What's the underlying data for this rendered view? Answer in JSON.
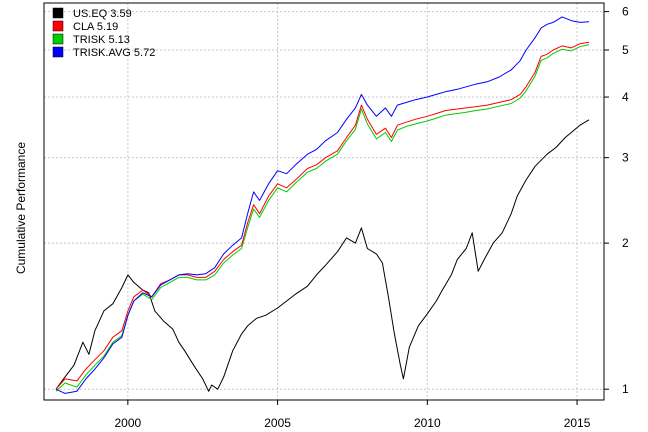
{
  "chart_data": {
    "type": "line",
    "title": "",
    "xlabel": "",
    "ylabel": "Cumulative Performance",
    "y_scale": "log",
    "xlim": [
      1997.2,
      2015.9
    ],
    "ylim": [
      0.95,
      6.25
    ],
    "x_ticks": [
      2000,
      2005,
      2010,
      2015
    ],
    "x_tick_labels": [
      "2000",
      "2005",
      "2010",
      "2015"
    ],
    "y_ticks": [
      1,
      2,
      3,
      4,
      5,
      6
    ],
    "y_tick_labels": [
      "1",
      "2",
      "3",
      "4",
      "5",
      "6"
    ],
    "grid": true,
    "legend_position": "top-left",
    "legend": [
      {
        "label": "US.EQ 3.59",
        "color": "#000000"
      },
      {
        "label": "CLA 5.19",
        "color": "#ff0000"
      },
      {
        "label": "TRISK 5.13",
        "color": "#00cc00"
      },
      {
        "label": "TRISK.AVG 5.72",
        "color": "#0000ff"
      }
    ],
    "series": [
      {
        "name": "US.EQ",
        "color": "#000000",
        "x": [
          1997.6,
          1997.9,
          1998.2,
          1998.5,
          1998.7,
          1998.9,
          1999.2,
          1999.5,
          1999.8,
          2000.0,
          2000.2,
          2000.5,
          2000.7,
          2000.9,
          2001.2,
          2001.5,
          2001.7,
          2001.9,
          2002.2,
          2002.5,
          2002.7,
          2002.8,
          2003.0,
          2003.2,
          2003.5,
          2003.8,
          2004.0,
          2004.3,
          2004.6,
          2005.0,
          2005.3,
          2005.6,
          2006.0,
          2006.3,
          2006.6,
          2007.0,
          2007.3,
          2007.6,
          2007.8,
          2008.0,
          2008.3,
          2008.5,
          2008.7,
          2008.9,
          2009.1,
          2009.2,
          2009.4,
          2009.7,
          2010.0,
          2010.3,
          2010.5,
          2010.8,
          2011.0,
          2011.3,
          2011.5,
          2011.7,
          2011.9,
          2012.2,
          2012.5,
          2012.8,
          2013.0,
          2013.3,
          2013.6,
          2014.0,
          2014.3,
          2014.6,
          2014.9,
          2015.1,
          2015.4
        ],
        "values": [
          1.0,
          1.06,
          1.12,
          1.25,
          1.18,
          1.32,
          1.45,
          1.5,
          1.62,
          1.72,
          1.66,
          1.6,
          1.58,
          1.45,
          1.38,
          1.33,
          1.25,
          1.2,
          1.12,
          1.05,
          0.99,
          1.02,
          1.0,
          1.06,
          1.2,
          1.3,
          1.35,
          1.4,
          1.42,
          1.47,
          1.52,
          1.57,
          1.63,
          1.72,
          1.8,
          1.92,
          2.05,
          2.0,
          2.15,
          1.95,
          1.9,
          1.82,
          1.55,
          1.3,
          1.12,
          1.05,
          1.22,
          1.35,
          1.43,
          1.52,
          1.6,
          1.72,
          1.85,
          1.95,
          2.1,
          1.75,
          1.85,
          2.0,
          2.1,
          2.3,
          2.5,
          2.7,
          2.88,
          3.05,
          3.15,
          3.3,
          3.42,
          3.5,
          3.59
        ]
      },
      {
        "name": "CLA",
        "color": "#ff0000",
        "x": [
          1997.6,
          1997.9,
          1998.3,
          1998.6,
          1998.9,
          1999.2,
          1999.5,
          1999.8,
          2000.0,
          2000.2,
          2000.5,
          2000.8,
          2001.1,
          2001.4,
          2001.7,
          2002.0,
          2002.3,
          2002.6,
          2002.9,
          2003.2,
          2003.5,
          2003.8,
          2004.0,
          2004.2,
          2004.4,
          2004.7,
          2005.0,
          2005.3,
          2005.6,
          2006.0,
          2006.3,
          2006.6,
          2007.0,
          2007.3,
          2007.6,
          2007.8,
          2008.0,
          2008.3,
          2008.6,
          2008.8,
          2009.0,
          2009.3,
          2009.6,
          2010.0,
          2010.3,
          2010.6,
          2011.0,
          2011.3,
          2011.6,
          2012.0,
          2012.4,
          2012.8,
          2013.1,
          2013.3,
          2013.6,
          2013.8,
          2014.0,
          2014.2,
          2014.5,
          2014.8,
          2015.1,
          2015.4
        ],
        "values": [
          1.0,
          1.05,
          1.04,
          1.1,
          1.15,
          1.2,
          1.28,
          1.32,
          1.45,
          1.55,
          1.6,
          1.55,
          1.65,
          1.68,
          1.72,
          1.72,
          1.7,
          1.7,
          1.75,
          1.85,
          1.92,
          1.98,
          2.2,
          2.4,
          2.3,
          2.5,
          2.65,
          2.6,
          2.7,
          2.85,
          2.9,
          3.0,
          3.1,
          3.3,
          3.5,
          3.85,
          3.6,
          3.35,
          3.45,
          3.3,
          3.5,
          3.55,
          3.6,
          3.65,
          3.7,
          3.75,
          3.78,
          3.8,
          3.82,
          3.85,
          3.9,
          3.95,
          4.05,
          4.2,
          4.5,
          4.85,
          4.9,
          5.0,
          5.1,
          5.05,
          5.15,
          5.19
        ]
      },
      {
        "name": "TRISK",
        "color": "#00cc00",
        "x": [
          1997.6,
          1997.9,
          1998.3,
          1998.6,
          1998.9,
          1999.2,
          1999.5,
          1999.8,
          2000.0,
          2000.2,
          2000.5,
          2000.8,
          2001.1,
          2001.4,
          2001.7,
          2002.0,
          2002.3,
          2002.6,
          2002.9,
          2003.2,
          2003.5,
          2003.8,
          2004.0,
          2004.2,
          2004.4,
          2004.7,
          2005.0,
          2005.3,
          2005.6,
          2006.0,
          2006.3,
          2006.6,
          2007.0,
          2007.3,
          2007.6,
          2007.8,
          2008.0,
          2008.3,
          2008.6,
          2008.8,
          2009.0,
          2009.3,
          2009.6,
          2010.0,
          2010.3,
          2010.6,
          2011.0,
          2011.3,
          2011.6,
          2012.0,
          2012.4,
          2012.8,
          2013.1,
          2013.3,
          2013.6,
          2013.8,
          2014.0,
          2014.2,
          2014.5,
          2014.8,
          2015.1,
          2015.4
        ],
        "values": [
          0.99,
          1.03,
          1.01,
          1.07,
          1.12,
          1.17,
          1.25,
          1.29,
          1.42,
          1.52,
          1.57,
          1.53,
          1.62,
          1.66,
          1.7,
          1.7,
          1.68,
          1.68,
          1.72,
          1.82,
          1.89,
          1.95,
          2.15,
          2.35,
          2.26,
          2.45,
          2.6,
          2.55,
          2.66,
          2.8,
          2.85,
          2.95,
          3.05,
          3.25,
          3.43,
          3.78,
          3.52,
          3.28,
          3.38,
          3.24,
          3.42,
          3.48,
          3.52,
          3.57,
          3.62,
          3.67,
          3.7,
          3.72,
          3.75,
          3.78,
          3.83,
          3.88,
          3.98,
          4.12,
          4.42,
          4.76,
          4.82,
          4.92,
          5.02,
          4.98,
          5.08,
          5.13
        ]
      },
      {
        "name": "TRISK.AVG",
        "color": "#0000ff",
        "x": [
          1997.6,
          1997.9,
          1998.3,
          1998.6,
          1998.9,
          1999.2,
          1999.5,
          1999.8,
          2000.0,
          2000.2,
          2000.5,
          2000.8,
          2001.1,
          2001.4,
          2001.7,
          2002.0,
          2002.3,
          2002.6,
          2002.9,
          2003.2,
          2003.5,
          2003.8,
          2004.0,
          2004.2,
          2004.4,
          2004.7,
          2005.0,
          2005.3,
          2005.6,
          2006.0,
          2006.3,
          2006.6,
          2007.0,
          2007.3,
          2007.6,
          2007.8,
          2008.0,
          2008.3,
          2008.6,
          2008.8,
          2009.0,
          2009.3,
          2009.6,
          2010.0,
          2010.3,
          2010.6,
          2011.0,
          2011.3,
          2011.6,
          2012.0,
          2012.4,
          2012.8,
          2013.1,
          2013.3,
          2013.6,
          2013.8,
          2014.0,
          2014.2,
          2014.5,
          2014.8,
          2015.1,
          2015.4
        ],
        "values": [
          1.0,
          0.98,
          0.99,
          1.05,
          1.1,
          1.16,
          1.24,
          1.28,
          1.42,
          1.52,
          1.58,
          1.55,
          1.64,
          1.68,
          1.72,
          1.73,
          1.72,
          1.73,
          1.78,
          1.9,
          1.98,
          2.05,
          2.3,
          2.55,
          2.45,
          2.65,
          2.82,
          2.78,
          2.9,
          3.05,
          3.12,
          3.25,
          3.38,
          3.6,
          3.8,
          4.05,
          3.85,
          3.65,
          3.8,
          3.65,
          3.85,
          3.9,
          3.95,
          4.0,
          4.05,
          4.1,
          4.15,
          4.2,
          4.25,
          4.3,
          4.4,
          4.55,
          4.75,
          5.0,
          5.3,
          5.55,
          5.65,
          5.7,
          5.85,
          5.75,
          5.7,
          5.72
        ]
      }
    ]
  }
}
